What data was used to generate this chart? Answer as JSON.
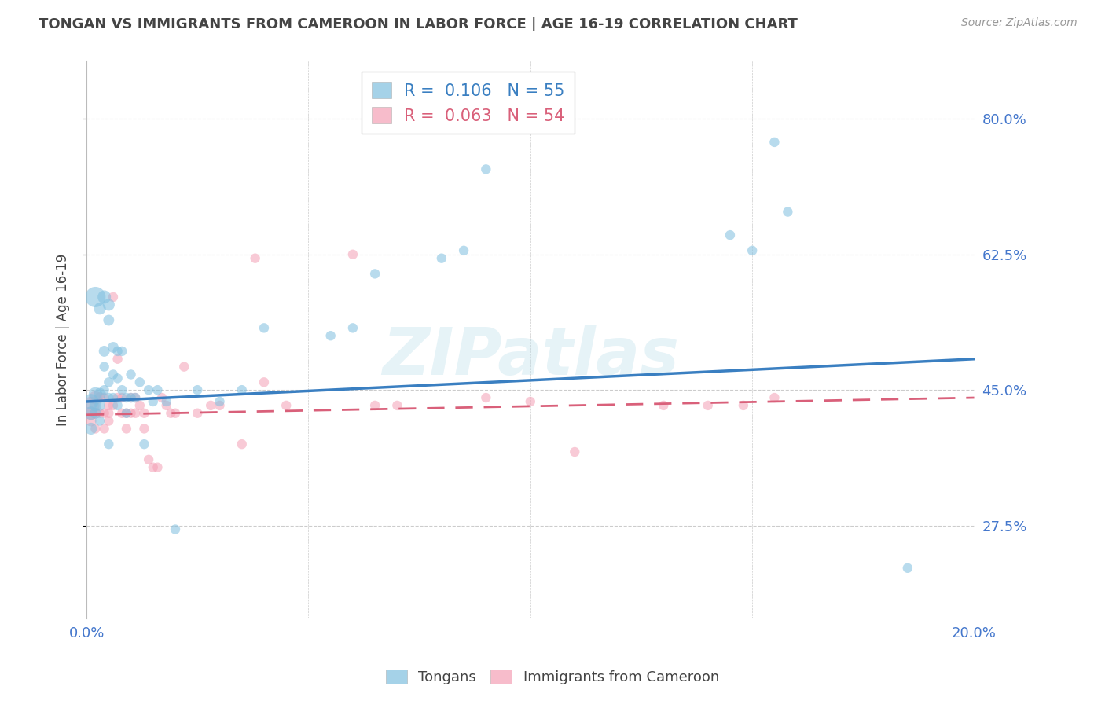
{
  "title": "TONGAN VS IMMIGRANTS FROM CAMEROON IN LABOR FORCE | AGE 16-19 CORRELATION CHART",
  "source": "Source: ZipAtlas.com",
  "ylabel": "In Labor Force | Age 16-19",
  "xlim": [
    0.0,
    0.2
  ],
  "ylim": [
    0.155,
    0.875
  ],
  "ytick_positions": [
    0.275,
    0.45,
    0.625,
    0.8
  ],
  "ytick_labels": [
    "27.5%",
    "45.0%",
    "62.5%",
    "80.0%"
  ],
  "xtick_positions": [
    0.0,
    0.05,
    0.1,
    0.15,
    0.2
  ],
  "xtick_labels": [
    "0.0%",
    "",
    "",
    "",
    "20.0%"
  ],
  "blue_color": "#7fbfdf",
  "pink_color": "#f4a0b5",
  "blue_line_color": "#3a7fc1",
  "pink_line_color": "#d9607a",
  "grid_color": "#cccccc",
  "title_color": "#444444",
  "axis_label_color": "#444444",
  "tick_label_color": "#4477cc",
  "legend_R1": "0.106",
  "legend_N1": "55",
  "legend_R2": "0.063",
  "legend_N2": "54",
  "watermark": "ZIPatlas",
  "blue_line_x0": 0.0,
  "blue_line_y0": 0.435,
  "blue_line_x1": 0.2,
  "blue_line_y1": 0.49,
  "pink_line_x0": 0.0,
  "pink_line_y0": 0.418,
  "pink_line_x1": 0.2,
  "pink_line_y1": 0.44,
  "blue_x": [
    0.001,
    0.001,
    0.001,
    0.002,
    0.002,
    0.002,
    0.002,
    0.003,
    0.003,
    0.003,
    0.003,
    0.004,
    0.004,
    0.004,
    0.004,
    0.005,
    0.005,
    0.005,
    0.005,
    0.005,
    0.006,
    0.006,
    0.006,
    0.007,
    0.007,
    0.007,
    0.008,
    0.008,
    0.009,
    0.009,
    0.01,
    0.01,
    0.011,
    0.012,
    0.013,
    0.014,
    0.015,
    0.016,
    0.018,
    0.02,
    0.025,
    0.03,
    0.035,
    0.04,
    0.055,
    0.06,
    0.065,
    0.08,
    0.085,
    0.09,
    0.145,
    0.15,
    0.155,
    0.158,
    0.185
  ],
  "blue_y": [
    0.435,
    0.42,
    0.4,
    0.445,
    0.43,
    0.42,
    0.57,
    0.445,
    0.43,
    0.555,
    0.41,
    0.57,
    0.5,
    0.48,
    0.45,
    0.56,
    0.54,
    0.46,
    0.44,
    0.38,
    0.505,
    0.47,
    0.44,
    0.5,
    0.465,
    0.43,
    0.5,
    0.45,
    0.44,
    0.42,
    0.47,
    0.44,
    0.44,
    0.46,
    0.38,
    0.45,
    0.435,
    0.45,
    0.435,
    0.27,
    0.45,
    0.435,
    0.45,
    0.53,
    0.52,
    0.53,
    0.6,
    0.62,
    0.63,
    0.735,
    0.65,
    0.63,
    0.77,
    0.68,
    0.22
  ],
  "pink_x": [
    0.001,
    0.001,
    0.001,
    0.002,
    0.002,
    0.002,
    0.003,
    0.003,
    0.004,
    0.004,
    0.004,
    0.005,
    0.005,
    0.005,
    0.006,
    0.006,
    0.007,
    0.007,
    0.008,
    0.008,
    0.009,
    0.009,
    0.01,
    0.01,
    0.011,
    0.011,
    0.012,
    0.013,
    0.013,
    0.014,
    0.015,
    0.016,
    0.017,
    0.018,
    0.019,
    0.02,
    0.022,
    0.025,
    0.028,
    0.03,
    0.035,
    0.038,
    0.04,
    0.045,
    0.06,
    0.065,
    0.07,
    0.09,
    0.1,
    0.11,
    0.13,
    0.14,
    0.148,
    0.155
  ],
  "pink_y": [
    0.43,
    0.42,
    0.41,
    0.44,
    0.42,
    0.4,
    0.44,
    0.42,
    0.44,
    0.42,
    0.4,
    0.43,
    0.42,
    0.41,
    0.57,
    0.43,
    0.49,
    0.44,
    0.44,
    0.42,
    0.42,
    0.4,
    0.44,
    0.42,
    0.44,
    0.42,
    0.43,
    0.42,
    0.4,
    0.36,
    0.35,
    0.35,
    0.44,
    0.43,
    0.42,
    0.42,
    0.48,
    0.42,
    0.43,
    0.43,
    0.38,
    0.62,
    0.46,
    0.43,
    0.625,
    0.43,
    0.43,
    0.44,
    0.435,
    0.37,
    0.43,
    0.43,
    0.43,
    0.44
  ],
  "blue_sizes": [
    200,
    150,
    120,
    150,
    120,
    100,
    350,
    120,
    100,
    120,
    80,
    150,
    100,
    80,
    80,
    120,
    100,
    80,
    80,
    80,
    100,
    80,
    80,
    80,
    80,
    80,
    80,
    80,
    80,
    80,
    80,
    80,
    80,
    80,
    80,
    80,
    80,
    80,
    80,
    80,
    80,
    80,
    80,
    80,
    80,
    80,
    80,
    80,
    80,
    80,
    80,
    80,
    80,
    80,
    80
  ],
  "pink_sizes": [
    250,
    150,
    100,
    150,
    100,
    80,
    100,
    80,
    80,
    80,
    80,
    80,
    80,
    80,
    80,
    80,
    80,
    80,
    80,
    80,
    80,
    80,
    80,
    80,
    80,
    80,
    80,
    80,
    80,
    80,
    80,
    80,
    80,
    80,
    80,
    80,
    80,
    80,
    80,
    80,
    80,
    80,
    80,
    80,
    80,
    80,
    80,
    80,
    80,
    80,
    80,
    80,
    80,
    80
  ]
}
